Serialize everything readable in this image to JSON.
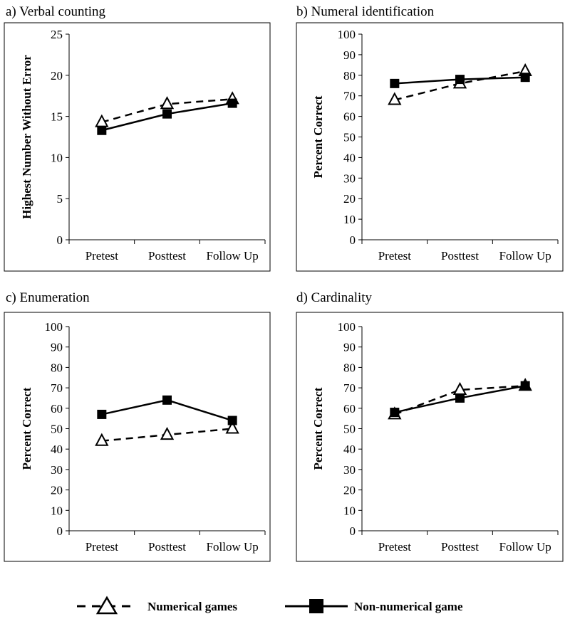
{
  "chart_data": [
    {
      "type": "line",
      "title": "a) Verbal counting",
      "ylabel": "Highest Number Without Error",
      "xlabel": "",
      "categories": [
        "Pretest",
        "Posttest",
        "Follow Up"
      ],
      "ylim": [
        0,
        25
      ],
      "yticks": [
        0,
        5,
        10,
        15,
        20,
        25
      ],
      "series": [
        {
          "name": "Numerical games",
          "values": [
            14.3,
            16.5,
            17.1
          ]
        },
        {
          "name": "Non-numerical game",
          "values": [
            13.3,
            15.3,
            16.6
          ]
        }
      ]
    },
    {
      "type": "line",
      "title": "b) Numeral identification",
      "ylabel": "Percent Correct",
      "xlabel": "",
      "categories": [
        "Pretest",
        "Posttest",
        "Follow Up"
      ],
      "ylim": [
        0,
        100
      ],
      "yticks": [
        0,
        10,
        20,
        30,
        40,
        50,
        60,
        70,
        80,
        90,
        100
      ],
      "series": [
        {
          "name": "Numerical games",
          "values": [
            68,
            76,
            82
          ]
        },
        {
          "name": "Non-numerical game",
          "values": [
            76,
            78,
            79
          ]
        }
      ]
    },
    {
      "type": "line",
      "title": "c) Enumeration",
      "ylabel": "Percent Correct",
      "xlabel": "",
      "categories": [
        "Pretest",
        "Posttest",
        "Follow Up"
      ],
      "ylim": [
        0,
        100
      ],
      "yticks": [
        0,
        10,
        20,
        30,
        40,
        50,
        60,
        70,
        80,
        90,
        100
      ],
      "series": [
        {
          "name": "Numerical games",
          "values": [
            44,
            47,
            50
          ]
        },
        {
          "name": "Non-numerical game",
          "values": [
            57,
            64,
            54
          ]
        }
      ]
    },
    {
      "type": "line",
      "title": "d) Cardinality",
      "ylabel": "Percent Correct",
      "xlabel": "",
      "categories": [
        "Pretest",
        "Posttest",
        "Follow Up"
      ],
      "ylim": [
        0,
        100
      ],
      "yticks": [
        0,
        10,
        20,
        30,
        40,
        50,
        60,
        70,
        80,
        90,
        100
      ],
      "series": [
        {
          "name": "Numerical games",
          "values": [
            57,
            69,
            71
          ]
        },
        {
          "name": "Non-numerical game",
          "values": [
            58,
            65,
            71
          ]
        }
      ]
    }
  ],
  "legend": {
    "numerical_label": "Numerical games",
    "nonnumerical_label": "Non-numerical game"
  },
  "colors": {
    "line": "#000000",
    "open_marker_fill": "#ffffff",
    "frame": "#000000"
  }
}
